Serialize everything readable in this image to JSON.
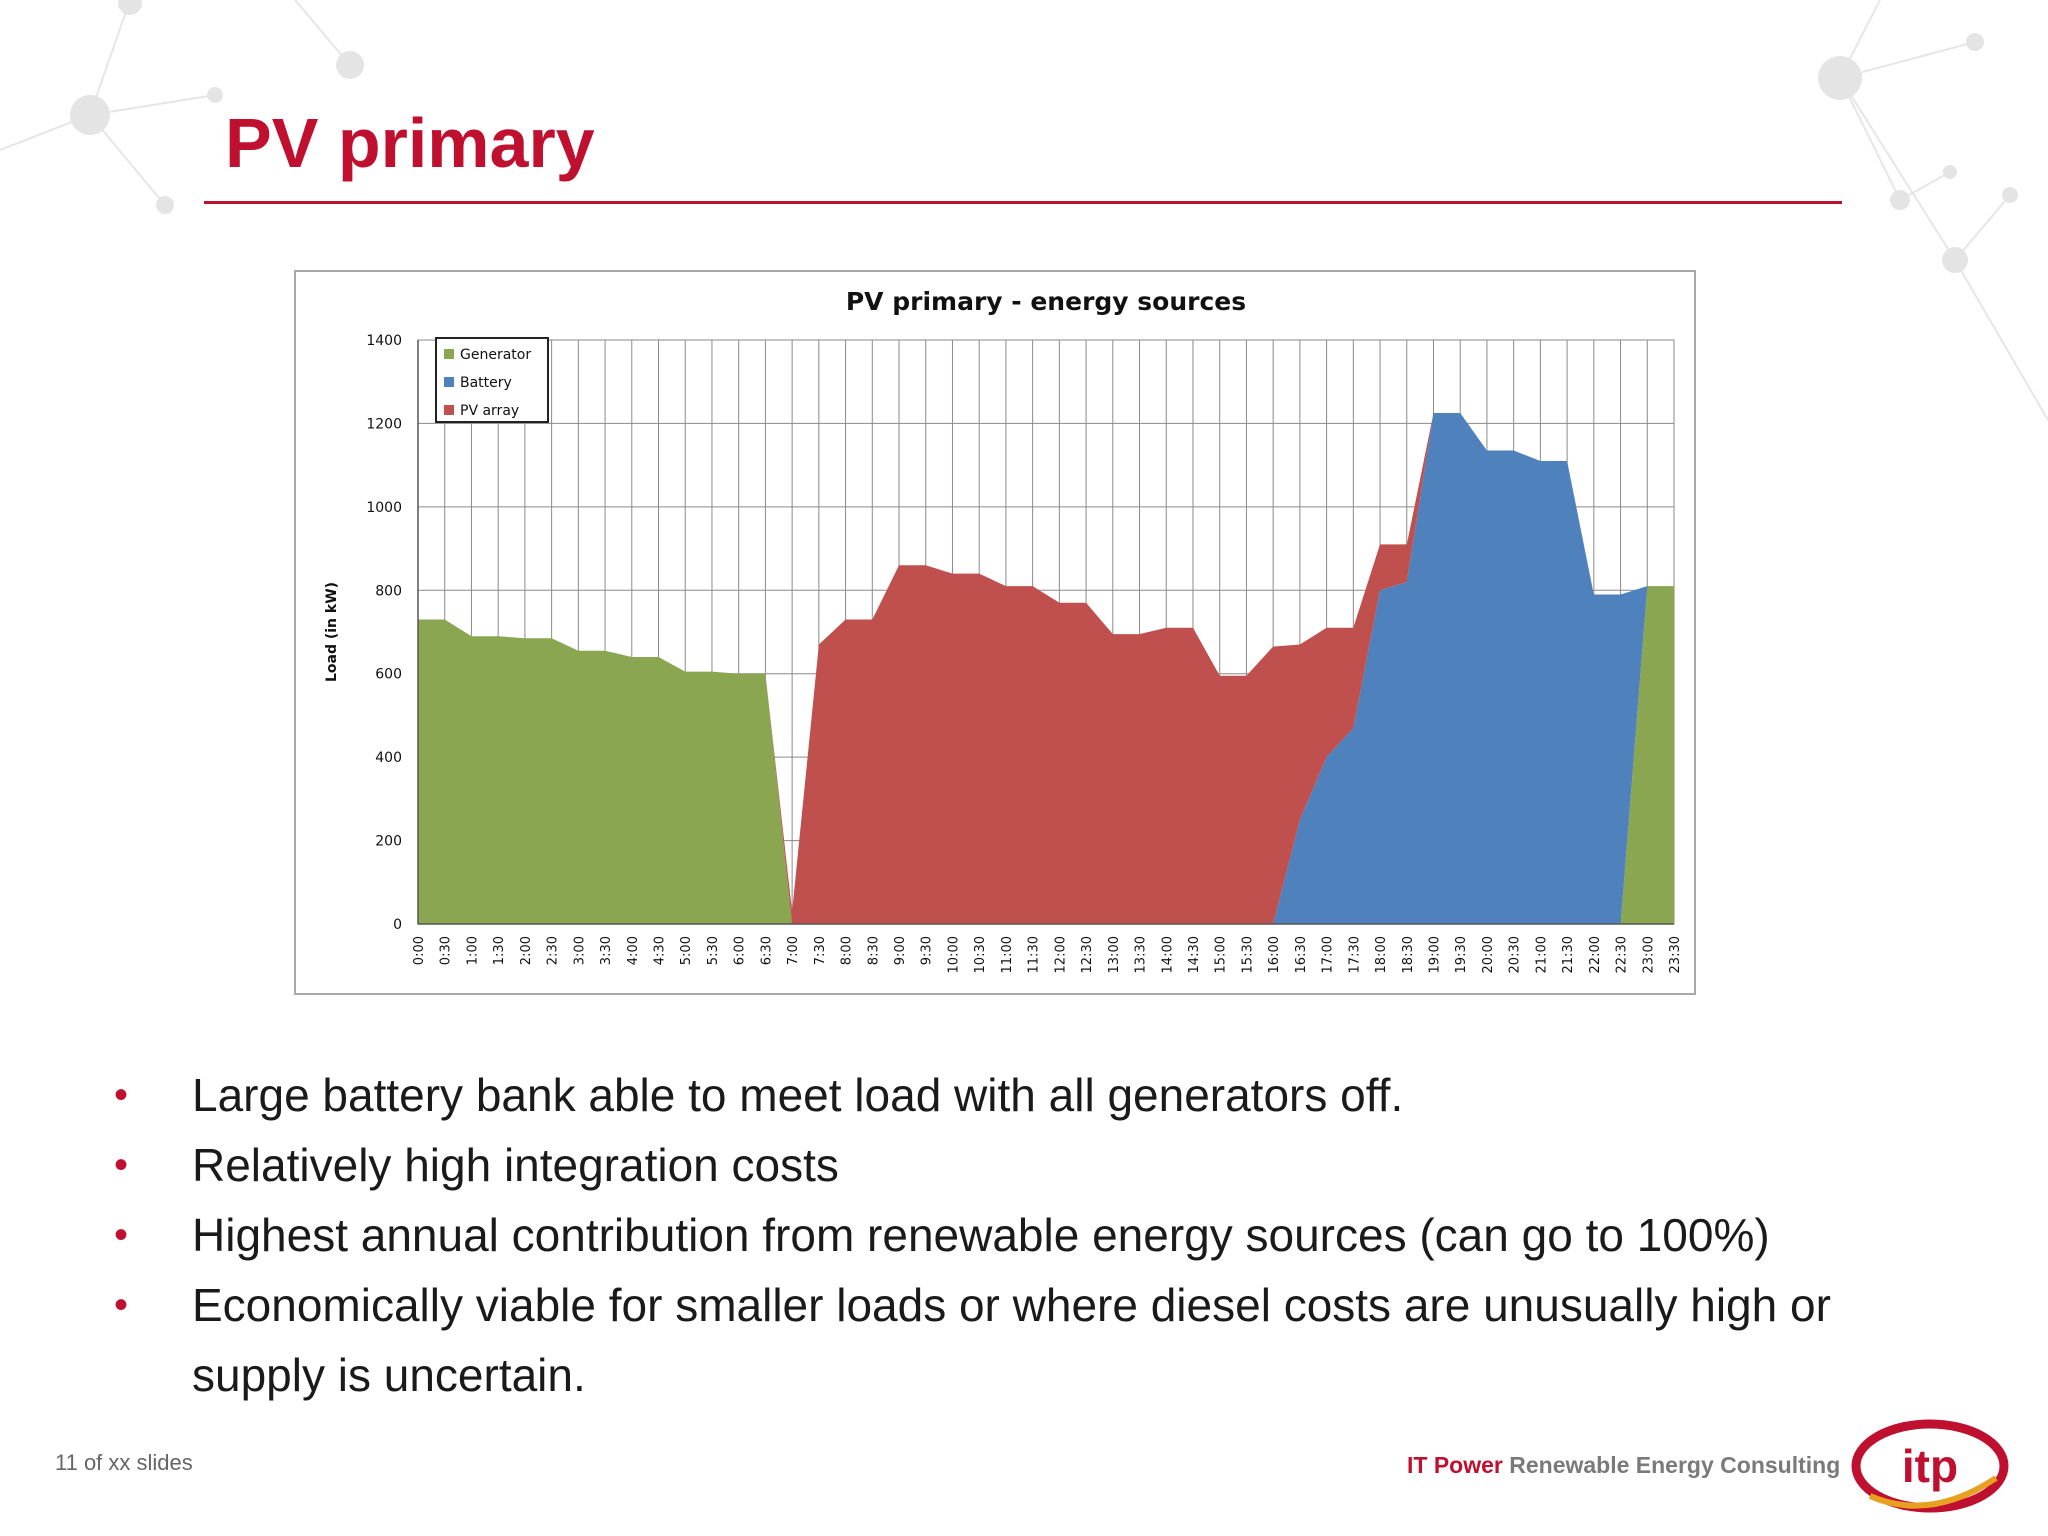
{
  "slide": {
    "title": "PV primary",
    "page_counter": "11 of xx slides",
    "brand_name": "IT Power",
    "brand_tagline": "Renewable Energy Consulting",
    "logo_text": "itp",
    "accent_color": "#c0102f"
  },
  "bullets": [
    "Large battery bank able to meet load with all generators off.",
    "Relatively high integration costs",
    "Highest annual contribution from renewable energy sources (can go to 100%)",
    "Economically viable for smaller loads or where diesel costs are unusually high or supply is uncertain."
  ],
  "chart_data": {
    "type": "area",
    "stacked": true,
    "title": "PV primary - energy sources",
    "xlabel": "",
    "ylabel": "Load (in kW)",
    "ylim": [
      0,
      1400
    ],
    "yticks": [
      0,
      200,
      400,
      600,
      800,
      1000,
      1200,
      1400
    ],
    "grid": true,
    "legend_position": "top-left",
    "categories": [
      "0:00",
      "0:30",
      "1:00",
      "1:30",
      "2:00",
      "2:30",
      "3:00",
      "3:30",
      "4:00",
      "4:30",
      "5:00",
      "5:30",
      "6:00",
      "6:30",
      "7:00",
      "7:30",
      "8:00",
      "8:30",
      "9:00",
      "9:30",
      "10:00",
      "10:30",
      "11:00",
      "11:30",
      "12:00",
      "12:30",
      "13:00",
      "13:30",
      "14:00",
      "14:30",
      "15:00",
      "15:30",
      "16:00",
      "16:30",
      "17:00",
      "17:30",
      "18:00",
      "18:30",
      "19:00",
      "19:30",
      "20:00",
      "20:30",
      "21:00",
      "21:30",
      "22:00",
      "22:30",
      "23:00",
      "23:30"
    ],
    "series": [
      {
        "name": "Generator",
        "color": "#8aa650",
        "values": [
          730,
          730,
          690,
          690,
          685,
          685,
          655,
          655,
          640,
          640,
          605,
          605,
          600,
          600,
          0,
          0,
          0,
          0,
          0,
          0,
          0,
          0,
          0,
          0,
          0,
          0,
          0,
          0,
          0,
          0,
          0,
          0,
          0,
          0,
          0,
          0,
          0,
          0,
          0,
          0,
          0,
          0,
          0,
          0,
          0,
          0,
          810,
          810
        ]
      },
      {
        "name": "Battery",
        "color": "#4f81bd",
        "values": [
          0,
          0,
          0,
          0,
          0,
          0,
          0,
          0,
          0,
          0,
          0,
          0,
          0,
          0,
          0,
          0,
          0,
          0,
          0,
          0,
          0,
          0,
          0,
          0,
          0,
          0,
          0,
          0,
          0,
          0,
          0,
          0,
          0,
          250,
          400,
          470,
          800,
          820,
          1225,
          1225,
          1135,
          1135,
          1110,
          1110,
          790,
          790,
          0,
          0
        ]
      },
      {
        "name": "PV array",
        "color": "#c0504d",
        "values": [
          0,
          0,
          0,
          0,
          0,
          0,
          0,
          0,
          0,
          0,
          0,
          0,
          0,
          0,
          30,
          670,
          730,
          730,
          860,
          860,
          840,
          840,
          810,
          810,
          770,
          770,
          695,
          695,
          710,
          710,
          595,
          595,
          665,
          420,
          310,
          240,
          110,
          90,
          0,
          0,
          0,
          0,
          0,
          0,
          0,
          0,
          0,
          0
        ]
      }
    ]
  }
}
